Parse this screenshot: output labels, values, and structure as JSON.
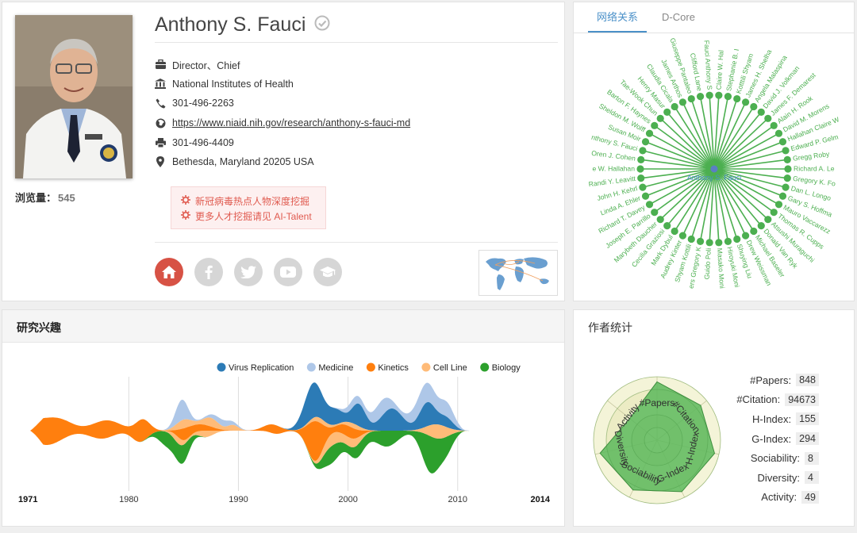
{
  "profile": {
    "name": "Anthony S. Fauci",
    "views_label": "浏览量：",
    "views_count": "545",
    "position": "Director、Chief",
    "organization": "National Institutes of Health",
    "phone": "301-496-2263",
    "homepage": "https://www.niaid.nih.gov/research/anthony-s-fauci-md",
    "fax": "301-496-4409",
    "address": "Bethesda, Maryland 20205 USA",
    "promo_line1": "新冠病毒热点人物深度挖掘",
    "promo_line2": "更多人才挖掘请见 AI-Talent",
    "accent": "#d75245",
    "icons": [
      "briefcase-icon",
      "institution-icon",
      "phone-icon",
      "globe-icon",
      "fax-icon",
      "location-pin-icon"
    ]
  },
  "network": {
    "tabs": [
      "网络关系",
      "D-Core"
    ],
    "center_label": "Anthony S. Fauci",
    "color": "#4caf50",
    "nodes": [
      "Claire W. Hal",
      "Stephanie B. I",
      "Kotttili Shyam",
      "James H. Shelha",
      "Angela Malaspina",
      "David J. Volkman",
      "James F. Demarest",
      "Alain H. Rook",
      "David M. Morens",
      "Hallahan Claire W",
      "Edward P. Gelm",
      "Gregg Roby",
      "Richard A. Le",
      "Gregory K. Fo",
      "Dan L. Longo",
      "Gary S. Hoffma",
      "Mauro Vaccarezz",
      "Thomas R. Cupps",
      "Atsushi Muraguchi",
      "Donald Van Ryk",
      "Michael Baseler",
      "Drew Weissman",
      "Shuying Liu",
      "Hiroyuki Moni",
      "Masako Moni",
      "Guido Poli",
      "ers Gregory K",
      "Shyam Kottili",
      "Audrey Kinter",
      "Mark Dybul",
      "Cecilia Graziosi",
      "Marybeth Daucher",
      "Joseph E. Parrillo",
      "Richard T. Davey",
      "Linda A. Ehler",
      "John H. Kehrl",
      "Randi Y. Leavitt",
      "e W. Hallahan",
      "Oren J. Cohen",
      "nthony S. Fauci",
      "Susan Moir",
      "Sheldon M. Wolff",
      "Barton F. Haynes",
      "Tae-Wook Chun",
      "Henry Masur",
      "Claudia Cicala",
      "James Arthos",
      "Giuseppe Pantaleo",
      "Clifford Lane",
      "Fauci Anthony S"
    ]
  },
  "interests": {
    "title": "研究兴趣",
    "legend": [
      {
        "name": "Virus Replication",
        "color": "#2c7bb6"
      },
      {
        "name": "Medicine",
        "color": "#aec7e8"
      },
      {
        "name": "Kinetics",
        "color": "#ff7f0e"
      },
      {
        "name": "Cell Line",
        "color": "#ffbb78"
      },
      {
        "name": "Biology",
        "color": "#2ca02c"
      }
    ],
    "start_year": "1971",
    "end_year": "2014",
    "ticks": [
      "1980",
      "1990",
      "2000",
      "2010"
    ]
  },
  "stats": {
    "title": "作者统计",
    "items": [
      {
        "label": "#Papers:",
        "value": "848"
      },
      {
        "label": "#Citation:",
        "value": "94673"
      },
      {
        "label": "H-Index:",
        "value": "155"
      },
      {
        "label": "G-Index:",
        "value": "294"
      },
      {
        "label": "Sociability:",
        "value": "8"
      },
      {
        "label": "Diversity:",
        "value": "4"
      },
      {
        "label": "Activity:",
        "value": "49"
      }
    ],
    "axes": [
      "#Papers",
      "#Citation",
      "H-Index",
      "G-Index",
      "Sociability",
      "Diversity",
      "Activity"
    ],
    "radar_levels": [
      0.92,
      0.88,
      0.93,
      0.9,
      0.87,
      0.92,
      0.55
    ],
    "fill_color": "#5cb85c"
  }
}
